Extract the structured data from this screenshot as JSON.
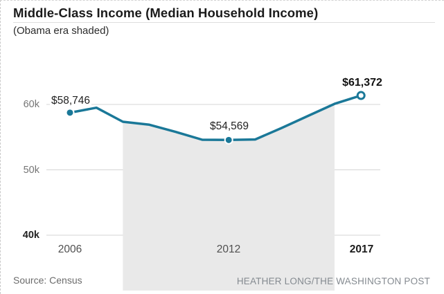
{
  "header": {
    "title": "Middle-Class Income (Median Household Income)",
    "subtitle": "(Obama era shaded)"
  },
  "footer": {
    "source": "Source: Census",
    "credit": "HEATHER LONG/THE WASHINGTON POST"
  },
  "chart_data": {
    "type": "line",
    "title": "Middle-Class Income (Median Household Income)",
    "subtitle": "(Obama era shaded)",
    "x": [
      2006,
      2007,
      2008,
      2009,
      2010,
      2011,
      2012,
      2013,
      2014,
      2015,
      2016,
      2017
    ],
    "values": [
      58746,
      59500,
      57350,
      56900,
      55800,
      54600,
      54569,
      54650,
      56400,
      58250,
      60100,
      61372
    ],
    "ylim": [
      40000,
      62500
    ],
    "yticks": [
      {
        "value": 60000,
        "label": "60k",
        "bold": false
      },
      {
        "value": 50000,
        "label": "50k",
        "bold": false
      },
      {
        "value": 40000,
        "label": "40k",
        "bold": true
      }
    ],
    "xticks": [
      {
        "year": 2006,
        "label": "2006",
        "bold": false
      },
      {
        "year": 2012,
        "label": "2012",
        "bold": false
      },
      {
        "year": 2017,
        "label": "2017",
        "bold": true
      }
    ],
    "annotations": [
      {
        "year": 2006,
        "value": 58746,
        "label": "$58,746",
        "bold": false,
        "marker": "filled"
      },
      {
        "year": 2012,
        "value": 54569,
        "label": "$54,569",
        "bold": false,
        "marker": "filled"
      },
      {
        "year": 2017,
        "value": 61372,
        "label": "$61,372",
        "bold": true,
        "marker": "open"
      }
    ],
    "shaded_region": {
      "from": 2008,
      "to": 2016,
      "label": "Obama era shaded"
    },
    "grid": true,
    "legend": false,
    "colors": {
      "line": "#1a7898",
      "shade": "#e9e9e9",
      "grid": "#d4d4d4",
      "background": "#ffffff"
    }
  }
}
